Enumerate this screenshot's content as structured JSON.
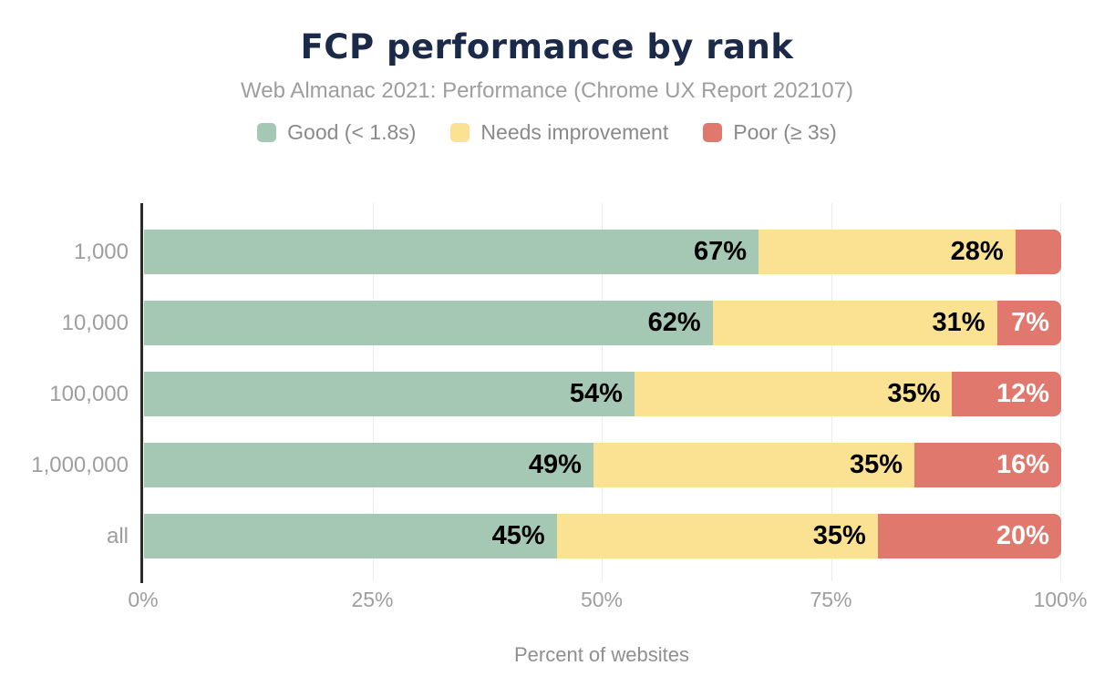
{
  "title": "FCP performance by rank",
  "subtitle": "Web Almanac 2021: Performance (Chrome UX Report 202107)",
  "legend": [
    {
      "label": "Good (< 1.8s)",
      "color": "#a4c8b4"
    },
    {
      "label": "Needs improvement",
      "color": "#fbe192"
    },
    {
      "label": "Poor (≥ 3s)",
      "color": "#e1786d"
    }
  ],
  "colors": {
    "title": "#1b2a49",
    "subtitle_gray": "#9e9e9e",
    "legend_gray": "#8a8a8a",
    "axis_line": "#2a2a2a",
    "gridline": "#ececec",
    "good": "#a4c8b4",
    "needs_improvement": "#fbe192",
    "poor": "#e1786d"
  },
  "chart_data": {
    "type": "bar",
    "orientation": "horizontal-stacked",
    "title": "FCP performance by rank",
    "subtitle": "Web Almanac 2021: Performance (Chrome UX Report 202107)",
    "categories": [
      "1,000",
      "10,000",
      "100,000",
      "1,000,000",
      "all"
    ],
    "series": [
      {
        "name": "Good (< 1.8s)",
        "color": "#a4c8b4",
        "label_color": "#000000",
        "values": [
          67,
          62,
          54,
          49,
          45
        ],
        "data_labels": [
          "67%",
          "62%",
          "54%",
          "49%",
          "45%"
        ]
      },
      {
        "name": "Needs improvement",
        "color": "#fbe192",
        "label_color": "#000000",
        "values": [
          28,
          31,
          35,
          35,
          35
        ],
        "data_labels": [
          "28%",
          "31%",
          "35%",
          "35%",
          "35%"
        ]
      },
      {
        "name": "Poor (≥ 3s)",
        "color": "#e1786d",
        "label_color": "#ffffff",
        "values": [
          5,
          7,
          12,
          16,
          20
        ],
        "data_labels": [
          "",
          "7%",
          "12%",
          "16%",
          "20%"
        ]
      }
    ],
    "xlabel": "Percent of websites",
    "ylabel": "",
    "x_ticks": [
      "0%",
      "25%",
      "50%",
      "75%",
      "100%"
    ],
    "x_tick_values": [
      0,
      25,
      50,
      75,
      100
    ],
    "xlim": [
      0,
      100
    ],
    "grid": true,
    "legend_position": "top"
  }
}
